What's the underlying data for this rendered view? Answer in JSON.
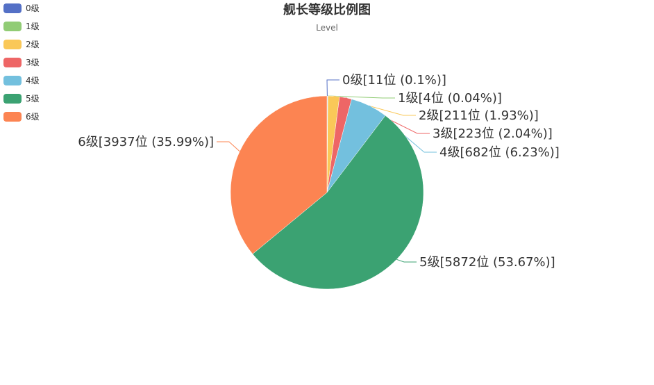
{
  "chart_data": {
    "type": "pie",
    "title": "舰长等级比例图",
    "subtitle": "Level",
    "legend_position": "top-left",
    "slices": [
      {
        "name": "0级",
        "count": 11,
        "percent": 0.1,
        "label": "0级[11位 (0.1%)]",
        "color": "#5470c6"
      },
      {
        "name": "1级",
        "count": 4,
        "percent": 0.04,
        "label": "1级[4位 (0.04%)]",
        "color": "#91cc75"
      },
      {
        "name": "2级",
        "count": 211,
        "percent": 1.93,
        "label": "2级[211位 (1.93%)]",
        "color": "#fac858"
      },
      {
        "name": "3级",
        "count": 223,
        "percent": 2.04,
        "label": "3级[223位 (2.04%)]",
        "color": "#ee6666"
      },
      {
        "name": "4级",
        "count": 682,
        "percent": 6.23,
        "label": "4级[682位 (6.23%)]",
        "color": "#73c0de"
      },
      {
        "name": "5级",
        "count": 5872,
        "percent": 53.67,
        "label": "5级[5872位 (53.67%)]",
        "color": "#3ba272"
      },
      {
        "name": "6级",
        "count": 3937,
        "percent": 35.99,
        "label": "6级[3937位 (35.99%)]",
        "color": "#fc8452"
      }
    ]
  }
}
